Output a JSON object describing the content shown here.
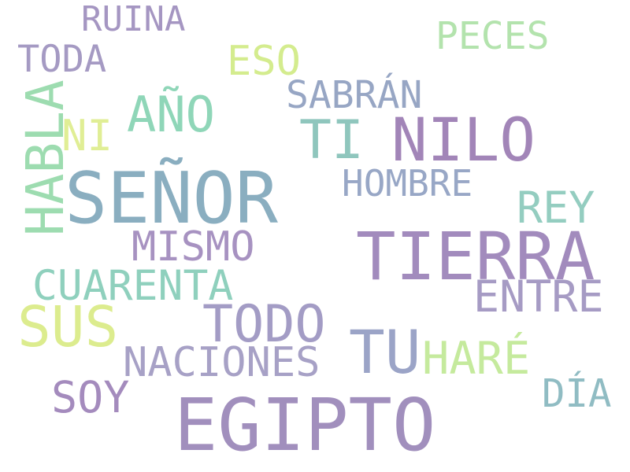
{
  "words": {
    "ruina": {
      "text": "RUINA",
      "color": "#a596c2"
    },
    "peces": {
      "text": "PECES",
      "color": "#b3e3ad"
    },
    "toda": {
      "text": "TODA",
      "color": "#a59ac3"
    },
    "eso": {
      "text": "ESO",
      "color": "#d4ec8e"
    },
    "sabran": {
      "text": "SABRÁN",
      "color": "#97a6c4"
    },
    "ano": {
      "text": "AÑO",
      "color": "#8fd6b8"
    },
    "ni": {
      "text": "NI",
      "color": "#e0ee95"
    },
    "ti": {
      "text": "TI",
      "color": "#8fc6bd"
    },
    "nilo": {
      "text": "NILO",
      "color": "#a285b8"
    },
    "hombre": {
      "text": "HOMBRE",
      "color": "#98a7c6"
    },
    "habla": {
      "text": "HABLA",
      "color": "#9ddcb0"
    },
    "senor": {
      "text": "SEÑOR",
      "color": "#8aaec0"
    },
    "rey": {
      "text": "REY",
      "color": "#94cdc0"
    },
    "tierra": {
      "text": "TIERRA",
      "color": "#a28bbd"
    },
    "mismo": {
      "text": "MISMO",
      "color": "#a792c1"
    },
    "cuarenta": {
      "text": "CUARENTA",
      "color": "#8fd0bd"
    },
    "entre": {
      "text": "ENTRE",
      "color": "#a69bc4"
    },
    "sus": {
      "text": "SUS",
      "color": "#dcec8e"
    },
    "todo": {
      "text": "TODO",
      "color": "#a39cc5"
    },
    "tu": {
      "text": "TU",
      "color": "#9ba4c7"
    },
    "hare": {
      "text": "HARÉ",
      "color": "#c5ea9d"
    },
    "naciones": {
      "text": "NACIONES",
      "color": "#a7a1c6"
    },
    "soy": {
      "text": "SOY",
      "color": "#a48bbd"
    },
    "dia": {
      "text": "DÍA",
      "color": "#90bcc3"
    },
    "egipto": {
      "text": "EGIPTO",
      "color": "#a18fbd"
    }
  }
}
